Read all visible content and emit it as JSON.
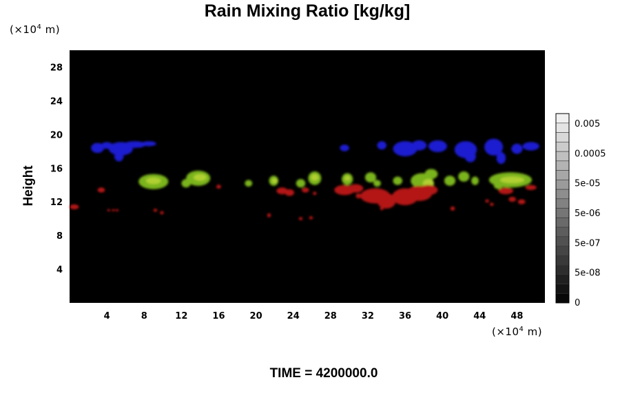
{
  "chart_data": {
    "type": "heatmap",
    "title": "Rain Mixing Ratio [kg/kg]",
    "ylabel": "Height",
    "xlabel": "",
    "x_unit": "(×10⁴ m)",
    "y_unit": "(×10⁴ m)",
    "x_unit_base": "(×10",
    "x_unit_exp": "4",
    "x_unit_tail": " m)",
    "xlim": [
      0,
      51
    ],
    "ylim": [
      0,
      30
    ],
    "x_ticks": [
      "4",
      "8",
      "12",
      "16",
      "20",
      "24",
      "28",
      "32",
      "36",
      "40",
      "44",
      "48"
    ],
    "y_ticks": [
      "4",
      "8",
      "12",
      "16",
      "20",
      "24",
      "28"
    ],
    "background": "#000000",
    "colorbar": {
      "labels": [
        "0.005",
        "0.0005",
        "5e-05",
        "5e-06",
        "5e-07",
        "5e-08",
        "0"
      ],
      "levels": 20
    },
    "layers": [
      {
        "color": "#1a1ad0",
        "blobs": [
          [
            3.0,
            18.4,
            0.7,
            0.6
          ],
          [
            4.0,
            18.7,
            0.6,
            0.4
          ],
          [
            5.5,
            18.3,
            1.3,
            0.8
          ],
          [
            5.3,
            17.4,
            0.5,
            0.6
          ],
          [
            7.0,
            18.8,
            1.2,
            0.4
          ],
          [
            8.5,
            18.9,
            0.8,
            0.3
          ],
          [
            29.5,
            18.4,
            0.5,
            0.4
          ],
          [
            33.5,
            18.7,
            0.5,
            0.5
          ],
          [
            36.0,
            18.3,
            1.3,
            0.9
          ],
          [
            37.5,
            18.7,
            0.8,
            0.6
          ],
          [
            39.5,
            18.6,
            1.0,
            0.7
          ],
          [
            42.5,
            18.2,
            1.2,
            1.0
          ],
          [
            43.0,
            17.4,
            0.6,
            0.7
          ],
          [
            45.5,
            18.5,
            1.0,
            1.0
          ],
          [
            46.3,
            17.2,
            0.5,
            0.7
          ],
          [
            48.0,
            18.3,
            0.6,
            0.6
          ],
          [
            49.5,
            18.6,
            0.9,
            0.5
          ]
        ]
      },
      {
        "color": "#7ab41c",
        "blobs": [
          [
            9.0,
            14.4,
            1.6,
            0.9
          ],
          [
            13.8,
            14.8,
            1.3,
            0.9
          ],
          [
            12.5,
            14.2,
            0.5,
            0.5
          ],
          [
            19.2,
            14.2,
            0.4,
            0.4
          ],
          [
            21.9,
            14.5,
            0.5,
            0.6
          ],
          [
            24.8,
            14.2,
            0.5,
            0.5
          ],
          [
            26.3,
            14.8,
            0.7,
            0.8
          ],
          [
            29.8,
            14.7,
            0.6,
            0.7
          ],
          [
            32.3,
            14.9,
            0.6,
            0.6
          ],
          [
            33.0,
            14.2,
            0.4,
            0.4
          ],
          [
            35.2,
            14.5,
            0.5,
            0.5
          ],
          [
            37.8,
            14.5,
            1.2,
            0.9
          ],
          [
            38.8,
            15.3,
            0.7,
            0.6
          ],
          [
            40.8,
            14.5,
            0.6,
            0.6
          ],
          [
            42.3,
            15.0,
            0.6,
            0.6
          ],
          [
            43.5,
            14.5,
            0.4,
            0.5
          ],
          [
            47.3,
            14.6,
            2.3,
            0.9
          ],
          [
            46.0,
            14.0,
            0.5,
            0.5
          ]
        ]
      },
      {
        "color": "#b0d030",
        "blobs": [
          [
            9.0,
            14.5,
            0.8,
            0.4
          ],
          [
            14.0,
            14.9,
            0.7,
            0.4
          ],
          [
            26.3,
            14.9,
            0.4,
            0.4
          ],
          [
            38.5,
            14.2,
            0.6,
            0.5
          ],
          [
            47.5,
            14.6,
            1.3,
            0.4
          ],
          [
            29.8,
            14.8,
            0.3,
            0.3
          ],
          [
            22.0,
            14.5,
            0.3,
            0.3
          ]
        ]
      },
      {
        "color": "#b41414",
        "blobs": [
          [
            0.5,
            11.4,
            0.5,
            0.3
          ],
          [
            3.4,
            13.4,
            0.4,
            0.3
          ],
          [
            4.2,
            11.0,
            0.15,
            0.15
          ],
          [
            4.7,
            11.0,
            0.15,
            0.15
          ],
          [
            5.1,
            11.0,
            0.15,
            0.15
          ],
          [
            9.2,
            11.0,
            0.2,
            0.2
          ],
          [
            9.9,
            10.7,
            0.2,
            0.2
          ],
          [
            16.0,
            13.8,
            0.25,
            0.25
          ],
          [
            21.4,
            10.4,
            0.2,
            0.25
          ],
          [
            22.8,
            13.3,
            0.6,
            0.4
          ],
          [
            23.6,
            13.1,
            0.5,
            0.4
          ],
          [
            24.8,
            10.0,
            0.2,
            0.2
          ],
          [
            25.3,
            13.4,
            0.4,
            0.3
          ],
          [
            25.9,
            10.1,
            0.2,
            0.2
          ],
          [
            26.3,
            13.0,
            0.2,
            0.2
          ],
          [
            29.5,
            13.4,
            1.1,
            0.6
          ],
          [
            30.7,
            13.6,
            0.8,
            0.5
          ],
          [
            31.0,
            12.7,
            0.3,
            0.3
          ],
          [
            32.8,
            12.7,
            1.6,
            0.9
          ],
          [
            34.0,
            12.1,
            1.0,
            0.9
          ],
          [
            36.0,
            12.6,
            1.4,
            1.0
          ],
          [
            37.5,
            13.0,
            1.4,
            0.9
          ],
          [
            38.5,
            13.4,
            1.0,
            0.6
          ],
          [
            34.6,
            11.7,
            0.2,
            0.2
          ],
          [
            35.4,
            11.9,
            0.2,
            0.2
          ],
          [
            33.5,
            11.2,
            0.2,
            0.2
          ],
          [
            41.1,
            11.2,
            0.25,
            0.25
          ],
          [
            44.8,
            12.1,
            0.2,
            0.2
          ],
          [
            45.3,
            11.7,
            0.2,
            0.2
          ],
          [
            46.8,
            13.3,
            0.8,
            0.4
          ],
          [
            47.5,
            12.3,
            0.4,
            0.3
          ],
          [
            48.5,
            12.0,
            0.4,
            0.3
          ],
          [
            49.5,
            13.7,
            0.6,
            0.3
          ]
        ]
      }
    ]
  },
  "time_label": "TIME = 4200000.0"
}
